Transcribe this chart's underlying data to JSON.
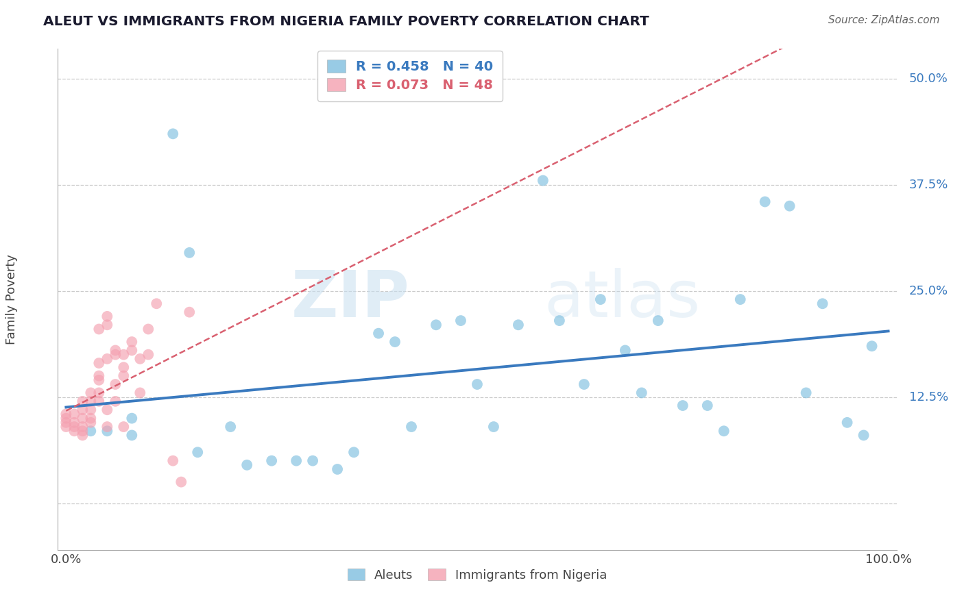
{
  "title": "ALEUT VS IMMIGRANTS FROM NIGERIA FAMILY POVERTY CORRELATION CHART",
  "source": "Source: ZipAtlas.com",
  "ylabel": "Family Poverty",
  "yticks": [
    0.0,
    0.125,
    0.25,
    0.375,
    0.5
  ],
  "ytick_labels": [
    "",
    "12.5%",
    "25.0%",
    "37.5%",
    "50.0%"
  ],
  "xlim": [
    -0.01,
    1.01
  ],
  "ylim": [
    -0.055,
    0.535
  ],
  "watermark_zip": "ZIP",
  "watermark_atlas": "atlas",
  "aleuts_R": 0.458,
  "aleuts_N": 40,
  "nigeria_R": 0.073,
  "nigeria_N": 48,
  "aleuts_color": "#7fbfdf",
  "nigeria_color": "#f4a0b0",
  "aleuts_line_color": "#3a7abf",
  "nigeria_line_color": "#d96070",
  "background_color": "#ffffff",
  "grid_color": "#cccccc",
  "aleuts_x": [
    0.08,
    0.08,
    0.13,
    0.15,
    0.16,
    0.2,
    0.22,
    0.25,
    0.28,
    0.3,
    0.33,
    0.35,
    0.38,
    0.4,
    0.42,
    0.45,
    0.48,
    0.5,
    0.52,
    0.55,
    0.58,
    0.6,
    0.63,
    0.65,
    0.68,
    0.7,
    0.72,
    0.75,
    0.78,
    0.8,
    0.82,
    0.85,
    0.88,
    0.9,
    0.92,
    0.95,
    0.97,
    0.98,
    0.03,
    0.05
  ],
  "aleuts_y": [
    0.1,
    0.08,
    0.435,
    0.295,
    0.06,
    0.09,
    0.045,
    0.05,
    0.05,
    0.05,
    0.04,
    0.06,
    0.2,
    0.19,
    0.09,
    0.21,
    0.215,
    0.14,
    0.09,
    0.21,
    0.38,
    0.215,
    0.14,
    0.24,
    0.18,
    0.13,
    0.215,
    0.115,
    0.115,
    0.085,
    0.24,
    0.355,
    0.35,
    0.13,
    0.235,
    0.095,
    0.08,
    0.185,
    0.085,
    0.085
  ],
  "nigeria_x": [
    0.0,
    0.0,
    0.0,
    0.0,
    0.01,
    0.01,
    0.01,
    0.01,
    0.02,
    0.02,
    0.02,
    0.02,
    0.02,
    0.02,
    0.03,
    0.03,
    0.03,
    0.03,
    0.03,
    0.04,
    0.04,
    0.04,
    0.04,
    0.04,
    0.04,
    0.05,
    0.05,
    0.05,
    0.05,
    0.05,
    0.06,
    0.06,
    0.06,
    0.06,
    0.07,
    0.07,
    0.07,
    0.07,
    0.08,
    0.08,
    0.09,
    0.09,
    0.1,
    0.1,
    0.11,
    0.13,
    0.14,
    0.15
  ],
  "nigeria_y": [
    0.095,
    0.1,
    0.105,
    0.09,
    0.085,
    0.095,
    0.105,
    0.09,
    0.12,
    0.11,
    0.1,
    0.09,
    0.085,
    0.08,
    0.12,
    0.13,
    0.11,
    0.1,
    0.095,
    0.145,
    0.165,
    0.205,
    0.15,
    0.13,
    0.12,
    0.22,
    0.21,
    0.17,
    0.09,
    0.11,
    0.18,
    0.175,
    0.14,
    0.12,
    0.16,
    0.15,
    0.09,
    0.175,
    0.19,
    0.18,
    0.17,
    0.13,
    0.205,
    0.175,
    0.235,
    0.05,
    0.025,
    0.225
  ]
}
